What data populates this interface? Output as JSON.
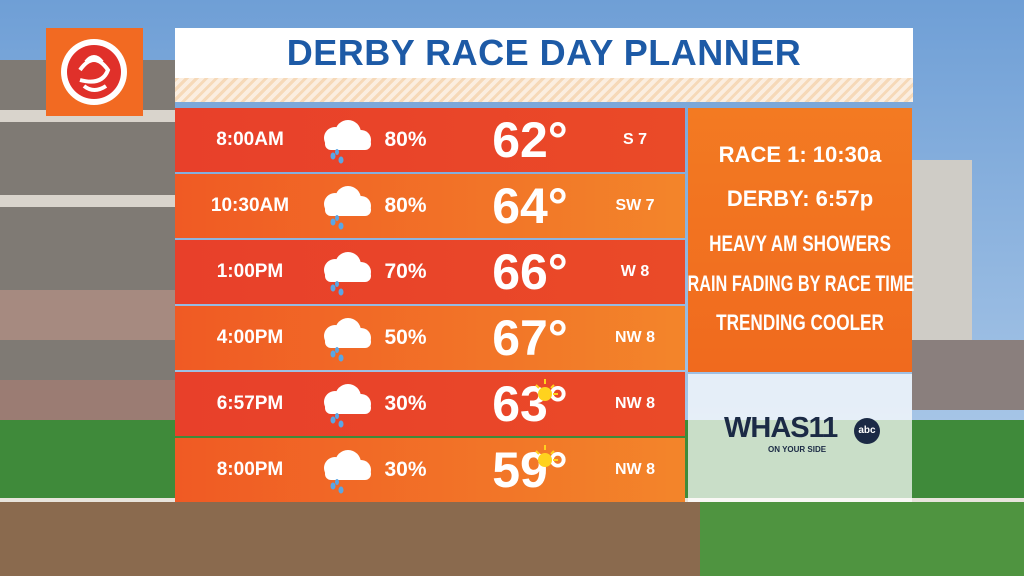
{
  "header": {
    "title": "DERBY RACE DAY PLANNER"
  },
  "table": {
    "rows": [
      [
        "8:00AM",
        "80%",
        "62°",
        "S 7"
      ],
      [
        "10:30AM",
        "80%",
        "64°",
        "SW 7"
      ],
      [
        "1:00PM",
        "70%",
        "66°",
        "W 8"
      ],
      [
        "4:00PM",
        "50%",
        "67°",
        "NW 8"
      ],
      [
        "6:57PM",
        "30%",
        "63°",
        "NW 8"
      ],
      [
        "8:00PM",
        "30%",
        "59°",
        "NW 8"
      ]
    ]
  },
  "summary": {
    "lines": [
      "RACE 1: 10:30a",
      "DERBY: 6:57p",
      "HEAVY AM SHOWERS",
      "RAIN FADING BY RACE TIME",
      "TRENDING COOLER"
    ]
  },
  "station": {
    "name": "WHAS11",
    "network": "abc",
    "slogan": "ON YOUR SIDE"
  }
}
